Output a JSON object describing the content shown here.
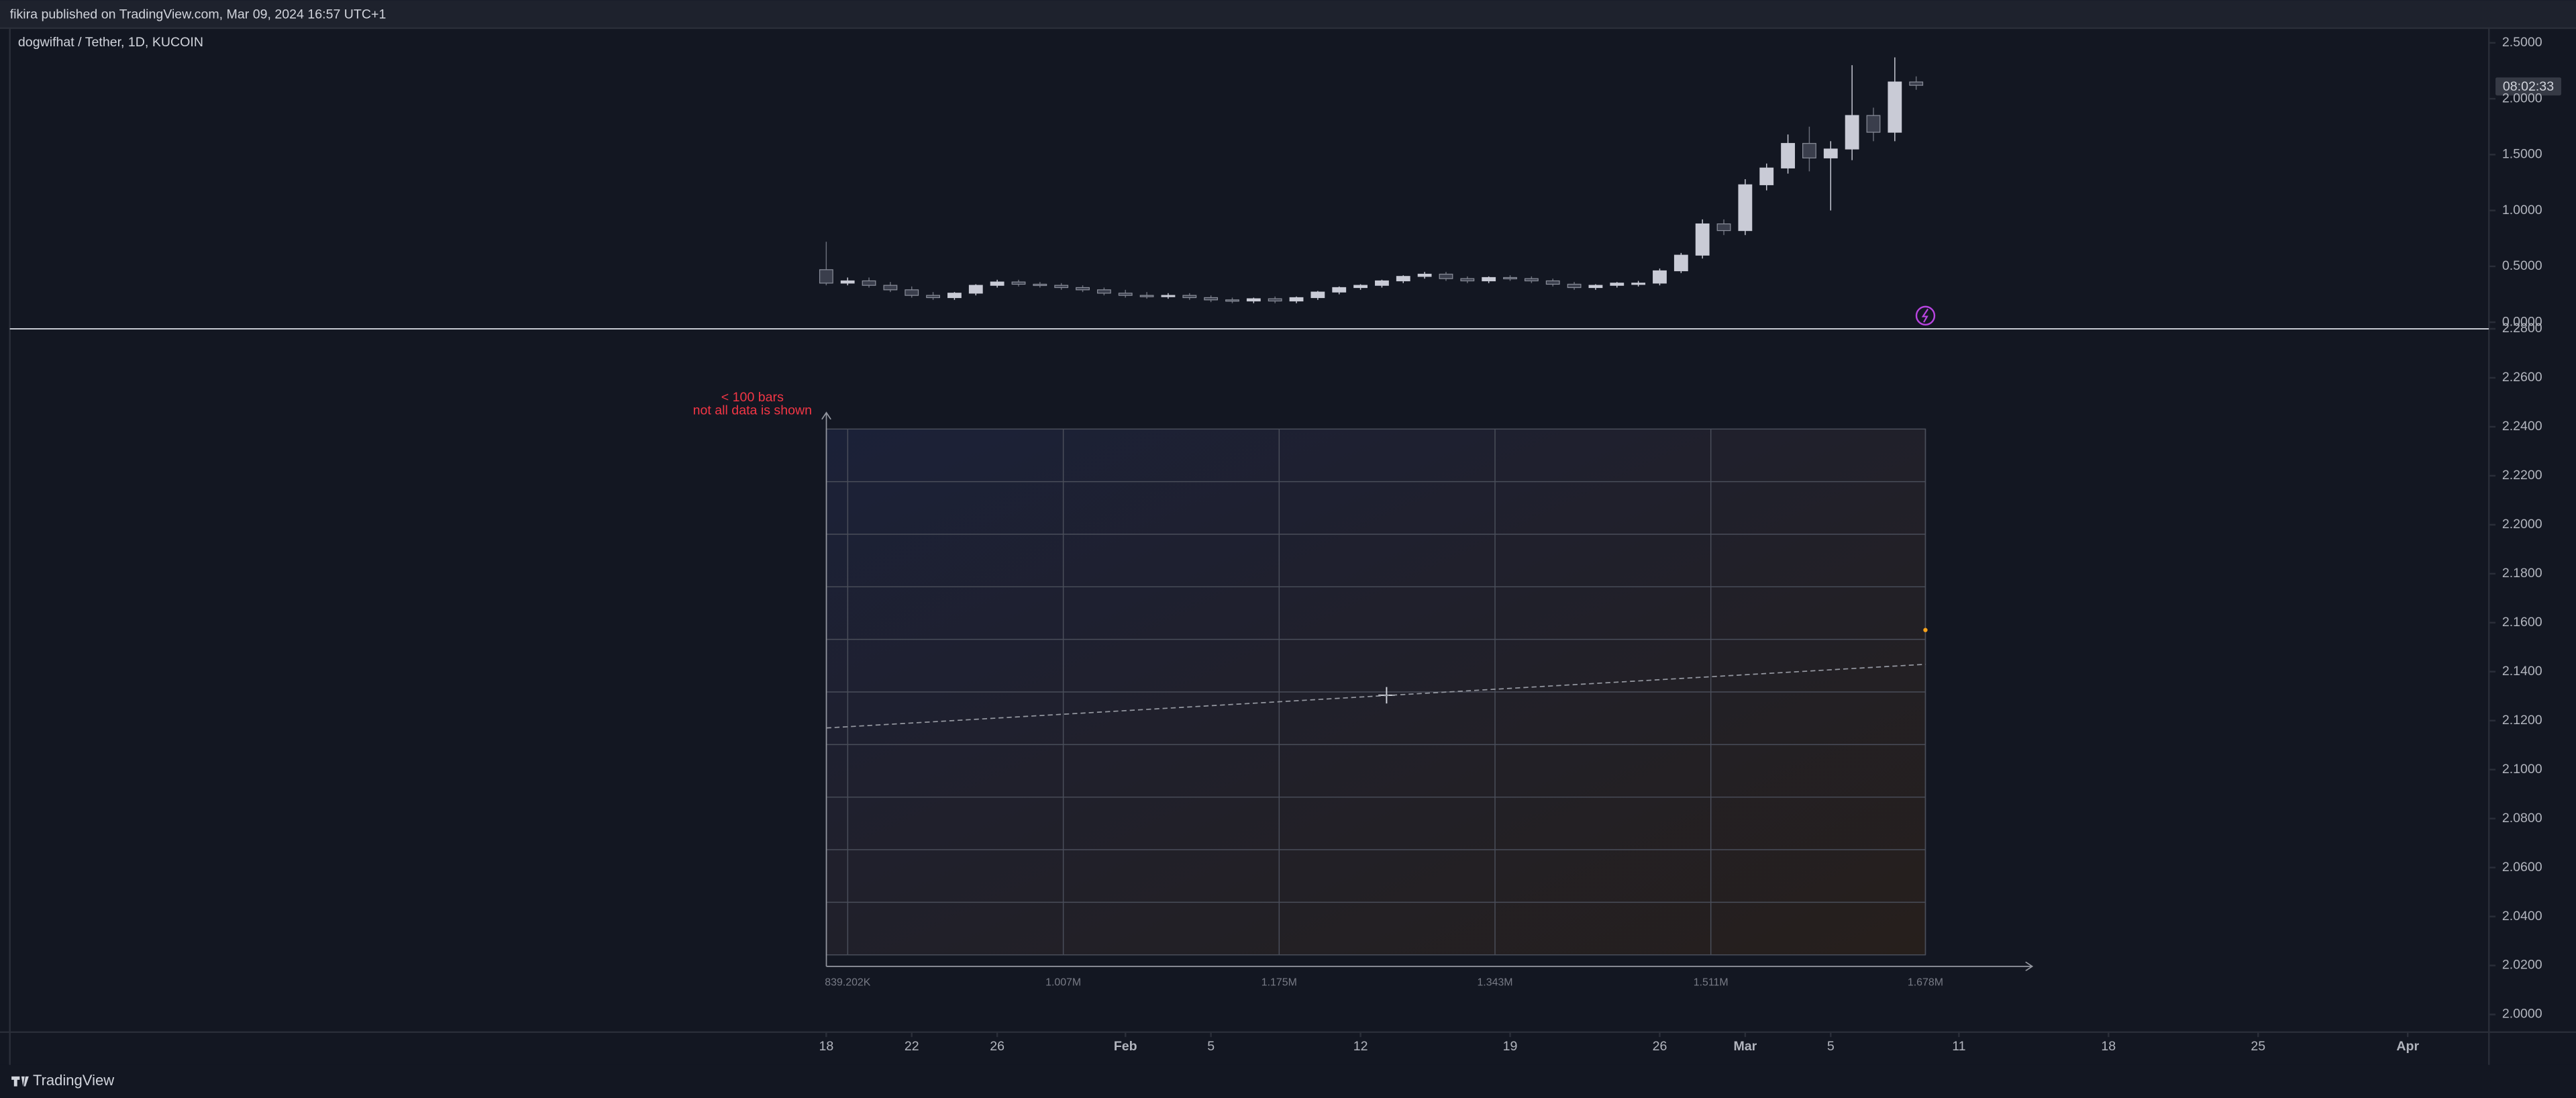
{
  "header": {
    "title": "fikira published on TradingView.com, Mar 09, 2024 16:57 UTC+1"
  },
  "footer": {
    "brand": "TradingView"
  },
  "chart_data": [
    {
      "type": "candlestick",
      "title": "dogwifhat / Tether, 1D, KUCOIN",
      "price_label": "08:02:33",
      "up_color": "#c9cbd6",
      "down_color": "#3a3e4c",
      "open": [
        0.47,
        0.35,
        0.37,
        0.33,
        0.29,
        0.24,
        0.22,
        0.26,
        0.33,
        0.36,
        0.34,
        0.33,
        0.31,
        0.29,
        0.26,
        0.24,
        0.23,
        0.24,
        0.22,
        0.2,
        0.19,
        0.21,
        0.19,
        0.22,
        0.27,
        0.31,
        0.33,
        0.37,
        0.41,
        0.43,
        0.39,
        0.37,
        0.4,
        0.39,
        0.37,
        0.34,
        0.31,
        0.33,
        0.35,
        0.35,
        0.46,
        0.6,
        0.88,
        0.82,
        1.23,
        1.38,
        1.6,
        1.47,
        1.55,
        1.85,
        1.7,
        2.15
      ],
      "high": [
        0.72,
        0.4,
        0.4,
        0.36,
        0.32,
        0.27,
        0.27,
        0.34,
        0.38,
        0.38,
        0.36,
        0.35,
        0.33,
        0.31,
        0.29,
        0.27,
        0.26,
        0.26,
        0.24,
        0.22,
        0.22,
        0.23,
        0.23,
        0.28,
        0.32,
        0.34,
        0.38,
        0.42,
        0.45,
        0.45,
        0.41,
        0.41,
        0.42,
        0.41,
        0.39,
        0.36,
        0.34,
        0.36,
        0.37,
        0.48,
        0.62,
        0.92,
        0.92,
        1.28,
        1.42,
        1.68,
        1.75,
        1.62,
        2.3,
        1.92,
        2.37,
        2.2
      ],
      "low": [
        0.33,
        0.33,
        0.31,
        0.27,
        0.22,
        0.2,
        0.2,
        0.24,
        0.31,
        0.32,
        0.31,
        0.29,
        0.27,
        0.24,
        0.22,
        0.21,
        0.21,
        0.2,
        0.18,
        0.17,
        0.17,
        0.17,
        0.17,
        0.2,
        0.25,
        0.29,
        0.31,
        0.35,
        0.39,
        0.37,
        0.35,
        0.35,
        0.37,
        0.35,
        0.32,
        0.29,
        0.29,
        0.31,
        0.32,
        0.33,
        0.44,
        0.57,
        0.78,
        0.78,
        1.18,
        1.33,
        1.35,
        1.0,
        1.45,
        1.62,
        1.62,
        2.08
      ],
      "close": [
        0.35,
        0.37,
        0.33,
        0.29,
        0.24,
        0.22,
        0.26,
        0.33,
        0.36,
        0.34,
        0.33,
        0.31,
        0.29,
        0.26,
        0.24,
        0.23,
        0.24,
        0.22,
        0.2,
        0.19,
        0.21,
        0.19,
        0.22,
        0.27,
        0.31,
        0.33,
        0.37,
        0.41,
        0.43,
        0.39,
        0.37,
        0.4,
        0.39,
        0.37,
        0.34,
        0.31,
        0.33,
        0.35,
        0.35,
        0.46,
        0.6,
        0.88,
        0.82,
        1.23,
        1.38,
        1.6,
        1.47,
        1.55,
        1.85,
        1.7,
        2.15,
        2.12
      ],
      "xlim": [
        -38.2,
        77.8
      ],
      "xticks": [
        {
          "value": 0,
          "label": "18"
        },
        {
          "value": 4,
          "label": "22"
        },
        {
          "value": 8,
          "label": "26"
        },
        {
          "value": 14,
          "label": "Feb"
        },
        {
          "value": 18,
          "label": "5"
        },
        {
          "value": 25,
          "label": "12"
        },
        {
          "value": 32,
          "label": "19"
        },
        {
          "value": 39,
          "label": "26"
        },
        {
          "value": 43,
          "label": "Mar"
        },
        {
          "value": 47,
          "label": "5"
        },
        {
          "value": 53,
          "label": "11"
        },
        {
          "value": 60,
          "label": "18"
        },
        {
          "value": 67,
          "label": "25"
        },
        {
          "value": 74,
          "label": "Apr"
        }
      ],
      "ylim": [
        -0.059,
        2.632
      ],
      "yticks": [
        {
          "value": 2.5,
          "label": "2.5000"
        },
        {
          "value": 2,
          "label": "2.0000"
        },
        {
          "value": 1.5,
          "label": "1.5000"
        },
        {
          "value": 1,
          "label": "1.0000"
        },
        {
          "value": 0.5,
          "label": "0.5000"
        },
        {
          "value": 0,
          "label": "0.0000"
        }
      ]
    },
    {
      "type": "line",
      "annotations": [
        "< 100 bars",
        "not all data is shown"
      ],
      "series": [
        {
          "color": "#9598a1",
          "dashed": true,
          "x": [
            822580,
            1678000
          ],
          "values": [
            2.117,
            2.143
          ]
        },
        {
          "color": "#f7a21b",
          "marker": true,
          "x": [
            1678000
          ],
          "values": [
            2.157
          ]
        }
      ],
      "xlim": [
        822580,
        1762400
      ],
      "xticks": [
        {
          "value": 839202,
          "label": "839.202K"
        },
        {
          "value": 1007000,
          "label": "1.007M"
        },
        {
          "value": 1175000,
          "label": "1.175M"
        },
        {
          "value": 1343000,
          "label": "1.343M"
        },
        {
          "value": 1511000,
          "label": "1.511M"
        },
        {
          "value": 1678000,
          "label": "1.678M"
        }
      ],
      "ylim": [
        1.9928,
        2.28
      ],
      "yticks": [
        {
          "value": 2.28,
          "label": "2.2800"
        },
        {
          "value": 2.26,
          "label": "2.2600"
        },
        {
          "value": 2.24,
          "label": "2.2400"
        },
        {
          "value": 2.22,
          "label": "2.2200"
        },
        {
          "value": 2.2,
          "label": "2.2000"
        },
        {
          "value": 2.18,
          "label": "2.1800"
        },
        {
          "value": 2.16,
          "label": "2.1600"
        },
        {
          "value": 2.14,
          "label": "2.1400"
        },
        {
          "value": 2.12,
          "label": "2.1200"
        },
        {
          "value": 2.1,
          "label": "2.1000"
        },
        {
          "value": 2.08,
          "label": "2.0800"
        },
        {
          "value": 2.06,
          "label": "2.0600"
        },
        {
          "value": 2.04,
          "label": "2.0400"
        },
        {
          "value": 2.02,
          "label": "2.0200"
        },
        {
          "value": 2,
          "label": "2.0000"
        }
      ]
    }
  ]
}
